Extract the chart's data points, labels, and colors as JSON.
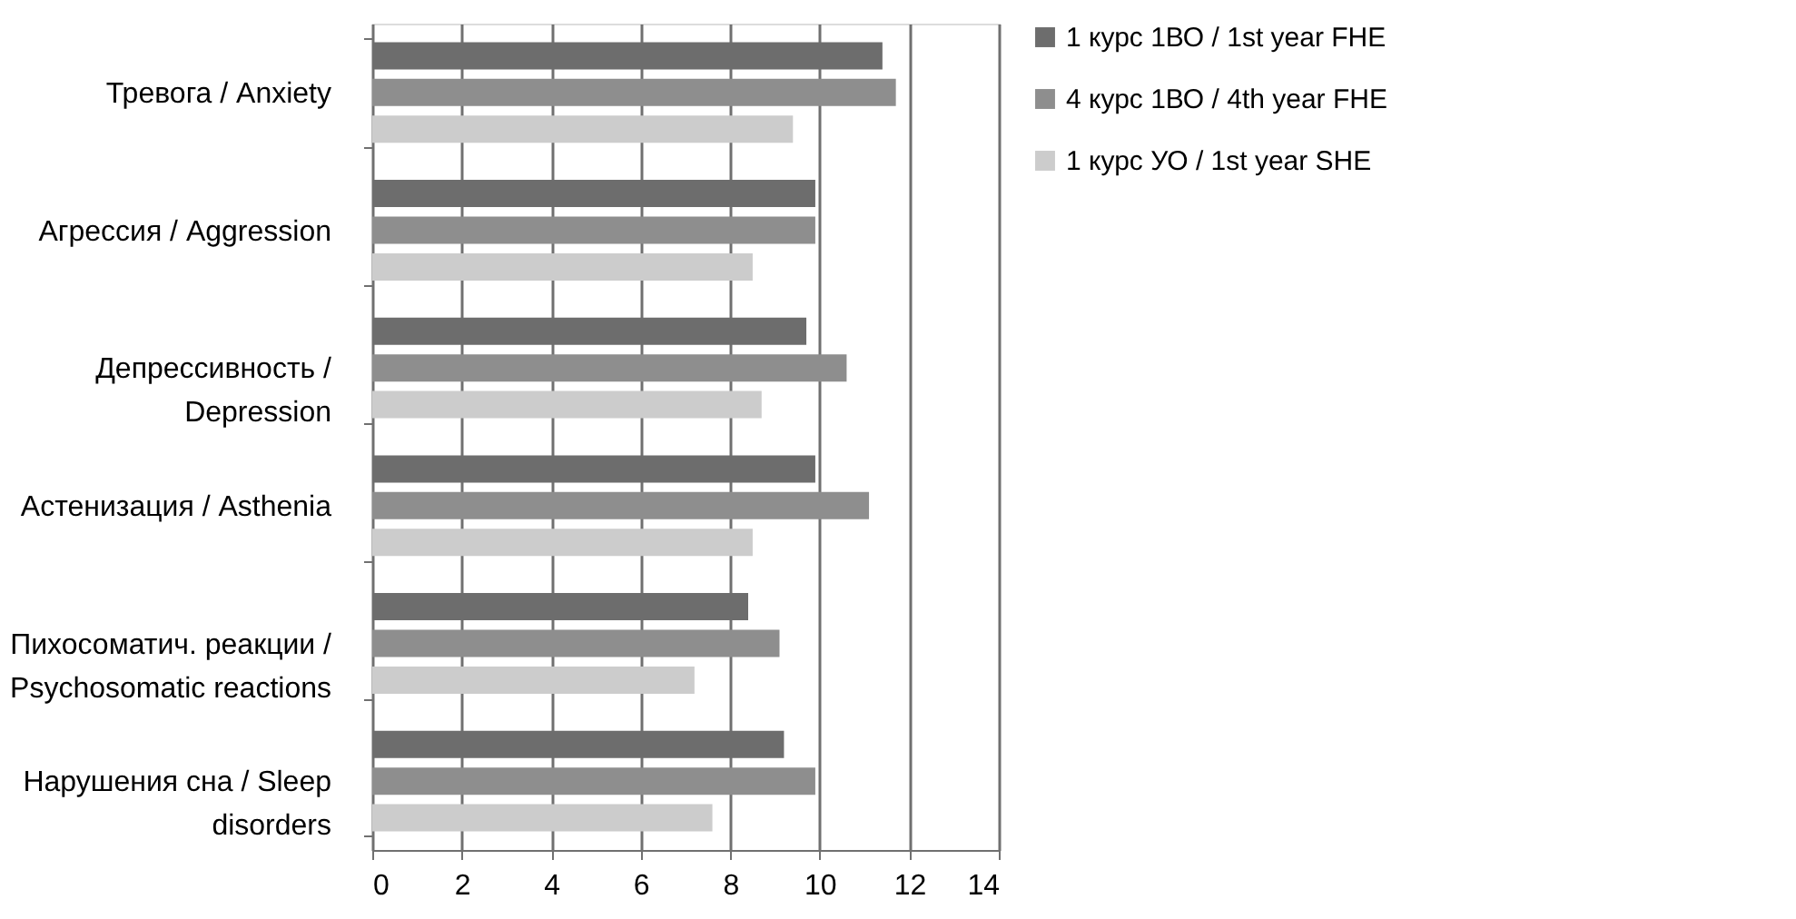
{
  "chart_data": {
    "type": "bar",
    "orientation": "horizontal",
    "categories": [
      "Тревога / Anxiety",
      "Агрессия / Aggression",
      "Депрессивность / Depression",
      "Астенизация / Asthenia",
      "Пихосоматич. реакции / Psychosomatic reactions",
      "Нарушения сна / Sleep disorders"
    ],
    "series": [
      {
        "name": "1 курс 1ВО / 1st year FHE",
        "color": "#6d6d6d",
        "values": [
          11.4,
          9.9,
          9.7,
          9.9,
          8.4,
          9.2
        ]
      },
      {
        "name": "4 курс 1ВО / 4th year FHE",
        "color": "#8e8e8e",
        "values": [
          11.7,
          9.9,
          10.6,
          11.1,
          9.1,
          9.9
        ]
      },
      {
        "name": "1 курс УО / 1st year SHE",
        "color": "#cccccc",
        "values": [
          9.4,
          8.5,
          8.7,
          8.5,
          7.2,
          7.6
        ]
      }
    ],
    "xlim": [
      0,
      14
    ],
    "xticks": [
      0,
      2,
      4,
      6,
      8,
      10,
      12,
      14
    ],
    "grid": "x",
    "legend": "right"
  }
}
